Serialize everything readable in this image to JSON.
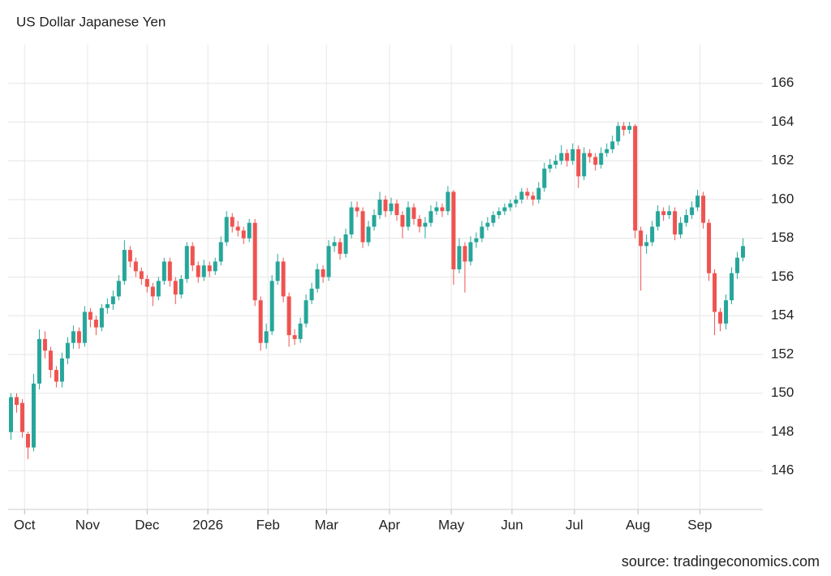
{
  "chart_data": {
    "type": "candlestick",
    "title": "US Dollar Japanese Yen",
    "source": "source: tradingeconomics.com",
    "up_color": "#26a69a",
    "down_color": "#ef5350",
    "grid": true,
    "ylim": [
      144,
      168
    ],
    "yticks": [
      146,
      148,
      150,
      152,
      154,
      156,
      158,
      160,
      162,
      164,
      166
    ],
    "xlim": [
      -0.5,
      132.5
    ],
    "xticks": [
      {
        "value": 2.4,
        "label": "Oct"
      },
      {
        "value": 13.5,
        "label": "Nov"
      },
      {
        "value": 24,
        "label": "Dec"
      },
      {
        "value": 34.7,
        "label": "2026"
      },
      {
        "value": 45.3,
        "label": "Feb"
      },
      {
        "value": 55.6,
        "label": "Mar"
      },
      {
        "value": 66.7,
        "label": "Apr"
      },
      {
        "value": 77.6,
        "label": "May"
      },
      {
        "value": 88.3,
        "label": "Jun"
      },
      {
        "value": 99.3,
        "label": "Jul"
      },
      {
        "value": 110.5,
        "label": "Aug"
      },
      {
        "value": 121.4,
        "label": "Sep"
      }
    ],
    "open": [
      148.0,
      149.8,
      149.5,
      147.9,
      147.2,
      150.5,
      152.8,
      152.2,
      151.2,
      150.6,
      151.8,
      152.6,
      153.2,
      152.6,
      154.2,
      153.8,
      153.4,
      154.4,
      154.6,
      155.0,
      155.8,
      157.4,
      156.8,
      156.3,
      155.9,
      155.5,
      155.0,
      155.8,
      156.8,
      155.8,
      155.1,
      155.9,
      157.6,
      156.6,
      156.0,
      156.6,
      156.3,
      156.8,
      157.8,
      159.1,
      158.6,
      158.4,
      158.0,
      158.8,
      154.8,
      152.6,
      153.2,
      155.8,
      156.8,
      155.0,
      153.0,
      152.8,
      153.6,
      154.8,
      155.4,
      156.4,
      156.0,
      157.6,
      157.8,
      157.2,
      158.2,
      159.6,
      159.4,
      157.8,
      158.6,
      159.2,
      160.0,
      159.4,
      159.8,
      159.2,
      158.6,
      159.6,
      159.0,
      158.6,
      158.8,
      159.4,
      159.6,
      159.4,
      160.4,
      156.4,
      157.6,
      156.8,
      157.8,
      158.0,
      158.6,
      158.8,
      159.2,
      159.4,
      159.6,
      159.8,
      160.0,
      160.4,
      160.2,
      160.0,
      160.6,
      161.6,
      161.8,
      162.0,
      162.4,
      162.0,
      162.6,
      161.2,
      162.4,
      162.2,
      161.8,
      162.4,
      162.6,
      163.0,
      163.8,
      163.6,
      163.8,
      158.4,
      157.6,
      157.8,
      158.6,
      159.4,
      159.2,
      159.4,
      158.2,
      158.8,
      159.2,
      159.6,
      160.2,
      158.8,
      156.2,
      154.2,
      153.6,
      154.8,
      156.2,
      157.0
    ],
    "high": [
      150.0,
      150.0,
      149.7,
      148.0,
      151.0,
      153.3,
      153.2,
      152.4,
      151.4,
      152.1,
      152.9,
      153.5,
      153.4,
      154.5,
      154.4,
      154.0,
      154.6,
      154.9,
      155.3,
      156.1,
      157.9,
      157.6,
      157.0,
      156.5,
      156.1,
      155.7,
      156.0,
      157.0,
      157.0,
      156.0,
      156.1,
      157.8,
      157.8,
      156.8,
      156.9,
      156.8,
      157.0,
      158.1,
      159.4,
      159.3,
      158.9,
      158.6,
      159.0,
      159.0,
      155.0,
      153.6,
      156.1,
      157.2,
      157.0,
      155.2,
      153.3,
      153.9,
      155.1,
      155.7,
      156.7,
      156.6,
      157.9,
      158.1,
      158.0,
      158.5,
      159.9,
      159.9,
      159.6,
      158.9,
      159.5,
      160.4,
      160.2,
      160.1,
      160.0,
      159.4,
      159.9,
      159.8,
      159.2,
      159.1,
      159.7,
      159.9,
      159.8,
      160.7,
      160.5,
      158.0,
      157.8,
      158.1,
      158.3,
      158.9,
      159.1,
      159.4,
      159.6,
      159.8,
      160.0,
      160.2,
      160.6,
      160.6,
      160.4,
      160.9,
      161.9,
      162.1,
      162.3,
      162.8,
      162.6,
      162.9,
      162.8,
      162.7,
      162.6,
      162.4,
      162.7,
      162.9,
      163.3,
      164.0,
      164.0,
      164.0,
      163.9,
      158.6,
      158.2,
      158.9,
      159.7,
      159.6,
      159.7,
      159.6,
      159.1,
      159.5,
      159.9,
      160.5,
      160.4,
      159.0,
      156.4,
      154.4,
      155.1,
      156.5,
      157.3,
      158.0
    ],
    "low": [
      147.6,
      149.0,
      147.7,
      146.6,
      147.0,
      150.2,
      151.8,
      150.8,
      150.3,
      150.3,
      151.5,
      152.3,
      152.3,
      152.4,
      153.4,
      153.0,
      153.2,
      154.1,
      154.3,
      154.8,
      155.6,
      156.5,
      156.0,
      155.6,
      155.2,
      154.5,
      154.8,
      155.6,
      155.5,
      154.6,
      154.9,
      155.7,
      156.3,
      155.7,
      155.8,
      156.0,
      156.1,
      156.6,
      157.6,
      158.3,
      158.1,
      157.7,
      157.8,
      154.5,
      152.2,
      152.3,
      153.0,
      155.6,
      154.7,
      152.4,
      152.5,
      152.6,
      153.4,
      154.6,
      155.2,
      155.7,
      155.8,
      157.3,
      156.9,
      157.0,
      158.0,
      159.1,
      157.5,
      157.6,
      158.4,
      159.0,
      159.1,
      159.2,
      158.9,
      158.0,
      158.4,
      158.7,
      158.3,
      158.0,
      158.6,
      159.2,
      159.1,
      159.2,
      155.6,
      156.2,
      155.2,
      156.6,
      157.5,
      157.8,
      158.4,
      158.6,
      159.0,
      159.2,
      159.4,
      159.6,
      159.8,
      160.0,
      159.7,
      159.8,
      160.4,
      161.4,
      161.6,
      161.8,
      161.7,
      161.8,
      160.6,
      161.0,
      161.9,
      161.5,
      161.6,
      162.2,
      162.4,
      162.8,
      163.3,
      163.4,
      158.0,
      155.3,
      157.2,
      157.6,
      158.4,
      158.9,
      159.0,
      157.9,
      158.0,
      158.6,
      159.0,
      159.4,
      158.5,
      155.8,
      153.0,
      153.2,
      153.3,
      154.6,
      155.9,
      156.8
    ],
    "close": [
      149.8,
      149.4,
      148.0,
      147.2,
      150.5,
      152.8,
      152.2,
      151.2,
      150.6,
      151.8,
      152.6,
      153.2,
      152.6,
      154.2,
      153.8,
      153.4,
      154.4,
      154.6,
      155.0,
      155.8,
      157.4,
      156.8,
      156.3,
      155.9,
      155.5,
      155.0,
      155.8,
      156.8,
      155.8,
      155.1,
      155.9,
      157.6,
      156.6,
      156.0,
      156.6,
      156.3,
      156.8,
      157.8,
      159.1,
      158.6,
      158.4,
      158.0,
      158.8,
      154.8,
      152.6,
      153.2,
      155.8,
      156.8,
      155.0,
      153.0,
      152.8,
      153.6,
      154.8,
      155.4,
      156.4,
      156.0,
      157.6,
      157.8,
      157.2,
      158.2,
      159.6,
      159.4,
      157.8,
      158.6,
      159.2,
      160.0,
      159.4,
      159.8,
      159.2,
      158.6,
      159.6,
      159.0,
      158.6,
      158.8,
      159.4,
      159.6,
      159.4,
      160.4,
      156.4,
      157.6,
      156.8,
      157.8,
      158.0,
      158.6,
      158.8,
      159.2,
      159.4,
      159.6,
      159.8,
      160.0,
      160.4,
      160.2,
      160.0,
      160.6,
      161.6,
      161.8,
      162.0,
      162.4,
      162.0,
      162.6,
      161.2,
      162.4,
      162.2,
      161.8,
      162.4,
      162.6,
      163.0,
      163.8,
      163.6,
      163.8,
      158.4,
      157.6,
      157.8,
      158.6,
      159.4,
      159.2,
      159.4,
      158.2,
      158.8,
      159.2,
      159.6,
      160.2,
      158.8,
      156.2,
      154.2,
      153.6,
      154.8,
      156.2,
      157.0,
      157.6
    ]
  }
}
